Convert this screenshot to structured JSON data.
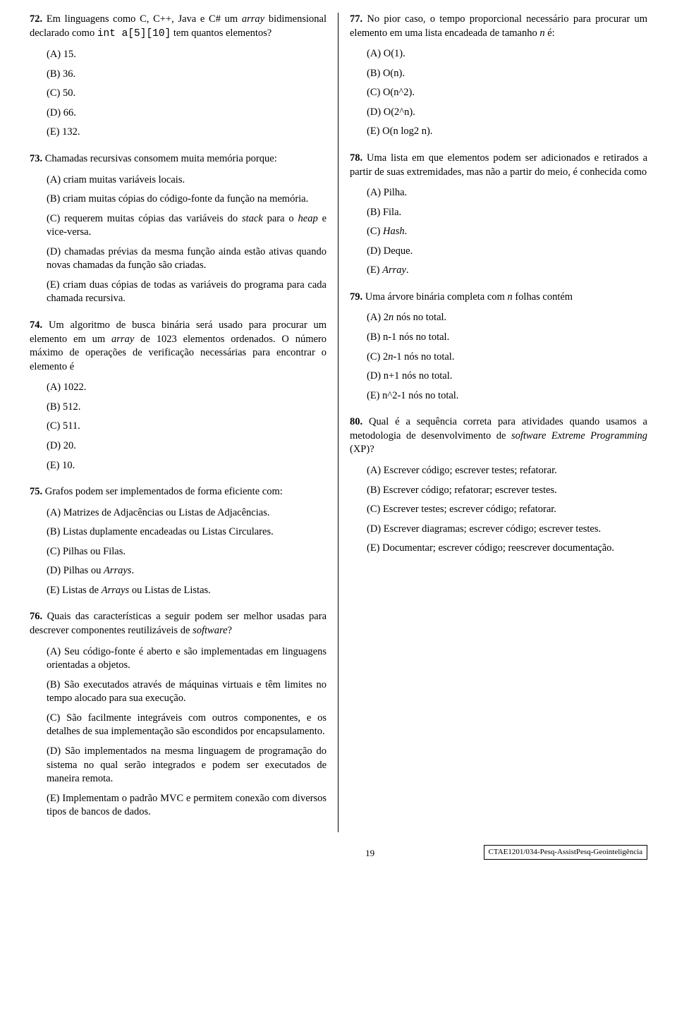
{
  "q72": {
    "num": "72.",
    "text_pre": "Em linguagens como C, C++, Java e C# um ",
    "text_italic1": "array",
    "text_mid": " bidimensional declarado como ",
    "text_code": "int a[5][10]",
    "text_post": " tem quantos elementos?",
    "opts": {
      "A": "(A) 15.",
      "B": "(B) 36.",
      "C": "(C) 50.",
      "D": "(D) 66.",
      "E": "(E) 132."
    }
  },
  "q73": {
    "num": "73.",
    "text": "Chamadas recursivas consomem muita memória porque:",
    "opts": {
      "A": "(A) criam muitas variáveis locais.",
      "B": "(B) criam muitas cópias do código-fonte da função na memória.",
      "C_pre": "(C) requerem muitas cópias das variáveis do ",
      "C_i1": "stack",
      "C_mid": " para o ",
      "C_i2": "heap",
      "C_post": " e vice-versa.",
      "D": "(D) chamadas prévias da mesma função ainda estão ativas quando novas chamadas da função são criadas.",
      "E": "(E) criam duas cópias de todas as variáveis do programa para cada chamada recursiva."
    }
  },
  "q74": {
    "num": "74.",
    "text_pre": "Um algoritmo de busca binária será usado para procurar um elemento em um ",
    "text_i": "array",
    "text_post": " de 1023 elementos ordenados. O número máximo de operações de verificação necessárias para encontrar o elemento é",
    "opts": {
      "A": "(A) 1022.",
      "B": "(B) 512.",
      "C": "(C) 511.",
      "D": "(D) 20.",
      "E": "(E) 10."
    }
  },
  "q75": {
    "num": "75.",
    "text": "Grafos podem ser implementados de forma eficiente com:",
    "opts": {
      "A": "(A) Matrizes de Adjacências ou Listas de Adjacências.",
      "B": "(B) Listas duplamente encadeadas ou Listas Circulares.",
      "C": "(C) Pilhas ou Filas.",
      "D_pre": "(D) Pilhas ou ",
      "D_i": "Arrays",
      "D_post": ".",
      "E_pre": "(E) Listas de ",
      "E_i": "Arrays",
      "E_post": " ou Listas de Listas."
    }
  },
  "q76": {
    "num": "76.",
    "text_pre": "Quais das características a seguir podem ser melhor usadas para descrever componentes reutilizáveis de ",
    "text_i": "software",
    "text_post": "?",
    "opts": {
      "A": "(A) Seu código-fonte é aberto e são implementadas em linguagens orientadas a objetos.",
      "B": "(B) São executados através de máquinas virtuais e têm limites no tempo alocado para sua execução.",
      "C": "(C) São facilmente integráveis com outros componentes, e os detalhes de sua implementação são escondidos por encapsulamento.",
      "D": "(D) São implementados na mesma linguagem de programação do sistema no qual serão integrados e podem ser executados de maneira remota.",
      "E": "(E) Implementam o padrão MVC e permitem conexão com diversos tipos de bancos de dados."
    }
  },
  "q77": {
    "num": "77.",
    "text_pre": "No pior caso, o tempo proporcional necessário para procurar um elemento em uma lista encadeada de tamanho ",
    "text_i": "n",
    "text_post": " é:",
    "opts": {
      "A": "(A) O(1).",
      "B": "(B) O(n).",
      "C": "(C) O(n^2).",
      "D": "(D) O(2^n).",
      "E": "(E) O(n log2 n)."
    }
  },
  "q78": {
    "num": "78.",
    "text": "Uma lista em que elementos podem ser adicionados e retirados a partir de suas extremidades, mas não a partir do meio, é conhecida como",
    "opts": {
      "A": "(A) Pilha.",
      "B": "(B) Fila.",
      "C_pre": "(C) ",
      "C_i": "Hash",
      "C_post": ".",
      "D": "(D) Deque.",
      "E_pre": "(E) ",
      "E_i": "Array",
      "E_post": "."
    }
  },
  "q79": {
    "num": "79.",
    "text_pre": "Uma árvore binária completa com ",
    "text_i": "n",
    "text_post": " folhas contém",
    "opts": {
      "A_pre": "(A) 2",
      "A_i": "n",
      "A_post": " nós no total.",
      "B": "(B) n-1 nós no total.",
      "C_pre": "(C) 2",
      "C_i": "n",
      "C_post": "-1 nós no total.",
      "D": "(D) n+1 nós no total.",
      "E": "(E) n^2-1 nós no total."
    }
  },
  "q80": {
    "num": "80.",
    "text_pre": "Qual é a sequência correta para atividades quando usamos a metodologia de desenvolvimento de ",
    "text_i": "software Extreme Programming",
    "text_post": " (XP)?",
    "opts": {
      "A": "(A)  Escrever código; escrever testes; refatorar.",
      "B": "(B)  Escrever código; refatorar; escrever testes.",
      "C": "(C)  Escrever testes; escrever código; refatorar.",
      "D": "(D)  Escrever diagramas; escrever código; escrever testes.",
      "E": "(E)  Documentar; escrever código; reescrever documentação."
    }
  },
  "footer": {
    "page": "19",
    "code": "CTAE1201/034-Pesq-AssistPesq-Geointeligência"
  }
}
